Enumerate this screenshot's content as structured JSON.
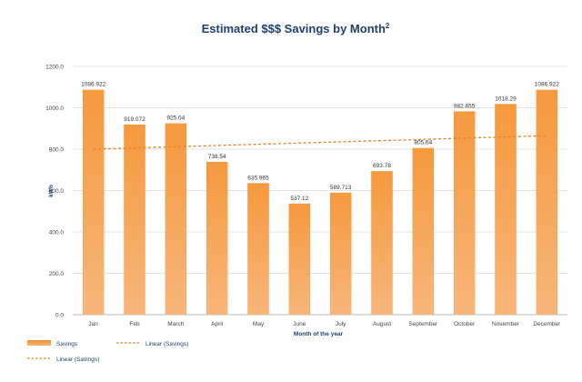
{
  "chart_data": {
    "type": "bar",
    "title": "Estimated $$$ Savings by Month",
    "title_superscript": "2",
    "xlabel": "Month of the year",
    "ylabel": "kWh",
    "ylim": [
      0,
      1200
    ],
    "yticks": [
      "0.0",
      "200.0",
      "400.0",
      "600.0",
      "800.0",
      "1000.0",
      "1200.0"
    ],
    "categories": [
      "Jan",
      "Feb",
      "March",
      "April",
      "May",
      "June",
      "July",
      "August",
      "September",
      "October",
      "November",
      "December"
    ],
    "series": [
      {
        "name": "Savings",
        "color": "#f28c2a",
        "values": [
          1086.922,
          919.072,
          925.04,
          738.54,
          635.965,
          537.12,
          589.713,
          693.78,
          805.64,
          982.855,
          1018.29,
          1086.922
        ],
        "labels": [
          "1086.922",
          "919.072",
          "925.04",
          "738.54",
          "635.965",
          "537.12",
          "589.713",
          "693.78",
          "805.64",
          "982.855",
          "1018.29",
          "1086.922"
        ]
      }
    ],
    "trendline": {
      "name": "Linear (Savings)",
      "color": "#e8801e",
      "style": "dashed",
      "start": 800,
      "end": 865
    },
    "grid": true,
    "legend": {
      "position": "bottom-left",
      "entries": [
        "Savings",
        "Linear (Savings)",
        "Linear (Savings)"
      ]
    }
  }
}
